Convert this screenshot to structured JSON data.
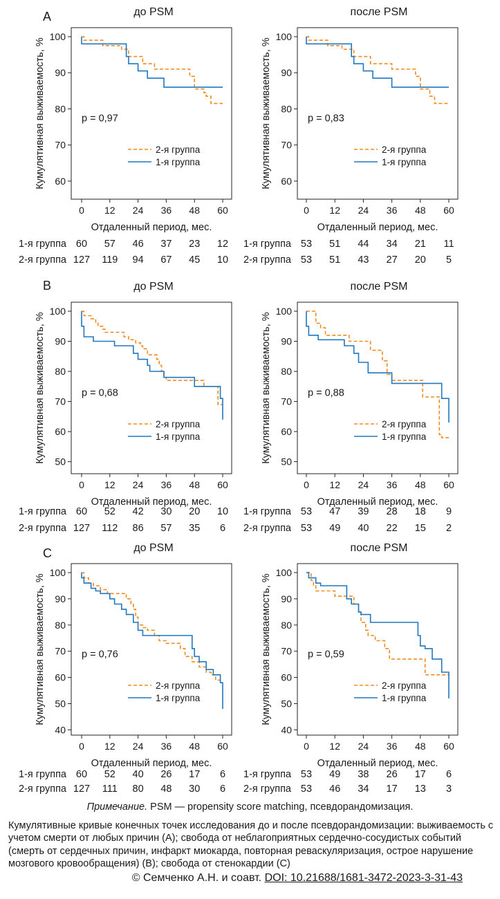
{
  "chart_data": [
    {
      "type": "line",
      "panel": "A",
      "title": "до PSM",
      "ylabel": "Кумулятивная выживаемость, %",
      "xlabel": "Отдаленный период, мес.",
      "xlim": [
        0,
        60
      ],
      "ylim": [
        55,
        101
      ],
      "xticks": [
        "0",
        "12",
        "24",
        "36",
        "48",
        "60"
      ],
      "yticks": [
        "100",
        "90",
        "80",
        "70",
        "60"
      ],
      "p_value": "p = 0,97",
      "legend": [
        "2-я группа",
        "1-я группа"
      ],
      "series": [
        {
          "name": "2-я группа",
          "style": "dashed",
          "x": [
            0,
            1,
            1,
            9,
            9,
            17,
            17,
            20,
            20,
            26,
            26,
            31,
            31,
            46,
            46,
            48,
            48,
            52,
            52,
            53,
            53,
            55,
            55,
            60
          ],
          "y": [
            100,
            100,
            99,
            99,
            97.5,
            97.5,
            96.5,
            96.5,
            94.5,
            94.5,
            92.5,
            92.5,
            91,
            91,
            89,
            89,
            85.5,
            85.5,
            84.5,
            84.5,
            83.5,
            83.5,
            81.5,
            81.5
          ]
        },
        {
          "name": "1-я группа",
          "style": "solid",
          "x": [
            0,
            0,
            19,
            19,
            20,
            20,
            24,
            24,
            28,
            28,
            35,
            35,
            60
          ],
          "y": [
            100,
            98,
            98,
            94.5,
            94.5,
            92.5,
            92.5,
            90.5,
            90.5,
            88.5,
            88.5,
            86,
            86
          ]
        }
      ],
      "at_risk": [
        {
          "label": "1-я группа",
          "values": [
            "60",
            "57",
            "46",
            "37",
            "23",
            "12"
          ]
        },
        {
          "label": "2-я группа",
          "values": [
            "127",
            "119",
            "94",
            "67",
            "45",
            "10"
          ]
        }
      ]
    },
    {
      "type": "line",
      "panel": "A",
      "title": "после PSM",
      "ylabel": "Кумулятивная выживаемость, %",
      "xlabel": "Отдаленный период, мес.",
      "xlim": [
        0,
        60
      ],
      "ylim": [
        55,
        101
      ],
      "xticks": [
        "0",
        "12",
        "24",
        "36",
        "48",
        "60"
      ],
      "yticks": [
        "100",
        "90",
        "80",
        "70",
        "60"
      ],
      "p_value": "p = 0,83",
      "legend": [
        "2-я группа",
        "1-я группа"
      ],
      "series": [
        {
          "name": "2-я группа",
          "style": "dashed",
          "x": [
            0,
            1,
            1,
            9,
            9,
            15,
            15,
            20,
            20,
            27,
            27,
            36,
            36,
            46,
            46,
            48,
            48,
            52,
            52,
            54,
            54,
            60
          ],
          "y": [
            100,
            100,
            99,
            99,
            97.5,
            97.5,
            96.5,
            96.5,
            94.5,
            94.5,
            92.5,
            92.5,
            91,
            91,
            89,
            89,
            85.5,
            85.5,
            83.5,
            83.5,
            81.5,
            81.5
          ]
        },
        {
          "name": "1-я группа",
          "style": "solid",
          "x": [
            0,
            0,
            19,
            19,
            20,
            20,
            24,
            24,
            28,
            28,
            36,
            36,
            60
          ],
          "y": [
            100,
            98,
            98,
            94.5,
            94.5,
            92.5,
            92.5,
            90.5,
            90.5,
            88.5,
            88.5,
            86,
            86
          ]
        }
      ],
      "at_risk": [
        {
          "label": "1-я группа",
          "values": [
            "53",
            "51",
            "44",
            "34",
            "21",
            "11"
          ]
        },
        {
          "label": "2-я группа",
          "values": [
            "53",
            "51",
            "43",
            "27",
            "20",
            "5"
          ]
        }
      ]
    },
    {
      "type": "line",
      "panel": "B",
      "title": "до PSM",
      "ylabel": "Кумулятивная выживаемость, %",
      "xlabel": "Отдаленный период, мес.",
      "xlim": [
        0,
        60
      ],
      "ylim": [
        46,
        101
      ],
      "xticks": [
        "0",
        "12",
        "24",
        "36",
        "48",
        "60"
      ],
      "yticks": [
        "100",
        "90",
        "80",
        "70",
        "60",
        "50"
      ],
      "p_value": "p = 0,68",
      "legend": [
        "2-я группа",
        "1-я группа"
      ],
      "series": [
        {
          "name": "2-я группа",
          "style": "dashed",
          "x": [
            0,
            1,
            1,
            4,
            4,
            6,
            6,
            7,
            7,
            9,
            9,
            10,
            10,
            18,
            18,
            20,
            20,
            23,
            23,
            25,
            25,
            26,
            26,
            28,
            28,
            32,
            32,
            33,
            33,
            34,
            34,
            35,
            35,
            36,
            36,
            52,
            52,
            58,
            58,
            60
          ],
          "y": [
            100,
            100,
            98.5,
            98.5,
            97.5,
            97.5,
            96,
            96,
            95,
            95,
            94,
            94,
            93,
            93,
            91.5,
            91.5,
            90.5,
            90.5,
            89.5,
            89.5,
            88.5,
            88.5,
            87.5,
            87.5,
            85.5,
            85.5,
            84,
            84,
            82,
            82,
            80,
            80,
            78,
            78,
            77,
            77,
            75,
            75,
            69,
            69
          ]
        },
        {
          "name": "1-я группа",
          "style": "solid",
          "x": [
            0,
            0,
            1,
            1,
            5,
            5,
            14,
            14,
            22,
            22,
            24,
            24,
            28,
            28,
            29,
            29,
            35,
            35,
            48,
            48,
            59,
            59,
            60,
            60
          ],
          "y": [
            100,
            95,
            95,
            91.5,
            91.5,
            90,
            90,
            88.5,
            88.5,
            86,
            86,
            84,
            84,
            82,
            82,
            80,
            80,
            78,
            78,
            75,
            75,
            71,
            71,
            64
          ]
        }
      ],
      "at_risk": [
        {
          "label": "1-я группа",
          "values": [
            "60",
            "52",
            "42",
            "30",
            "20",
            "10"
          ]
        },
        {
          "label": "2-я группа",
          "values": [
            "127",
            "112",
            "86",
            "57",
            "35",
            "6"
          ]
        }
      ]
    },
    {
      "type": "line",
      "panel": "B",
      "title": "после PSM",
      "ylabel": "Кумулятивная выживаемость, %",
      "xlabel": "Отдаленный период, мес.",
      "xlim": [
        0,
        60
      ],
      "ylim": [
        46,
        101
      ],
      "xticks": [
        "0",
        "12",
        "24",
        "36",
        "48",
        "60"
      ],
      "yticks": [
        "100",
        "90",
        "80",
        "70",
        "60",
        "50"
      ],
      "p_value": "p = 0,88",
      "legend": [
        "2-я группа",
        "1-я группа"
      ],
      "series": [
        {
          "name": "2-я группа",
          "style": "dashed",
          "x": [
            0,
            4,
            4,
            6,
            6,
            8,
            8,
            18,
            18,
            27,
            27,
            32,
            32,
            34,
            34,
            36,
            36,
            49,
            49,
            56,
            56,
            57,
            57,
            60
          ],
          "y": [
            100,
            100,
            96,
            96,
            94.5,
            94.5,
            92,
            92,
            90,
            90,
            87,
            87,
            83.5,
            83.5,
            79,
            79,
            77,
            77,
            71.5,
            71.5,
            59,
            59,
            58,
            58
          ]
        },
        {
          "name": "1-я группа",
          "style": "solid",
          "x": [
            0,
            0,
            1,
            1,
            5,
            5,
            16,
            16,
            20,
            20,
            22,
            22,
            26,
            26,
            36,
            36,
            57,
            57,
            60,
            60
          ],
          "y": [
            100,
            95,
            95,
            92,
            92,
            90.5,
            90.5,
            88.5,
            88.5,
            86,
            86,
            83,
            83,
            79.5,
            79.5,
            76,
            76,
            71,
            71,
            63
          ]
        }
      ],
      "at_risk": [
        {
          "label": "1-я группа",
          "values": [
            "53",
            "47",
            "39",
            "28",
            "18",
            "9"
          ]
        },
        {
          "label": "2-я группа",
          "values": [
            "53",
            "49",
            "40",
            "22",
            "15",
            "2"
          ]
        }
      ]
    },
    {
      "type": "line",
      "panel": "C",
      "title": "до PSM",
      "ylabel": "Кумулятивная выживаемость, %",
      "xlabel": "Отдаленный период, мес.",
      "xlim": [
        0,
        60
      ],
      "ylim": [
        38,
        101
      ],
      "xticks": [
        "0",
        "12",
        "24",
        "36",
        "48",
        "60"
      ],
      "yticks": [
        "100",
        "90",
        "80",
        "70",
        "60",
        "50",
        "40"
      ],
      "p_value": "p = 0,76",
      "legend": [
        "2-я группа",
        "1-я группа"
      ],
      "series": [
        {
          "name": "2-я группа",
          "style": "dashed",
          "x": [
            0,
            1,
            1,
            3,
            3,
            5,
            5,
            8,
            8,
            11,
            11,
            19,
            19,
            21,
            21,
            22,
            22,
            23,
            23,
            24,
            24,
            26,
            26,
            28,
            28,
            31,
            31,
            33,
            33,
            36,
            36,
            42,
            42,
            44,
            44,
            47,
            47,
            50,
            50,
            53,
            53,
            55,
            55,
            57,
            57,
            59,
            59,
            60
          ],
          "y": [
            100,
            100,
            98,
            98,
            96,
            96,
            95,
            95,
            93.5,
            93.5,
            92,
            92,
            90,
            90,
            88,
            88,
            86,
            86,
            83,
            83,
            80,
            80,
            79,
            79,
            78,
            78,
            76,
            76,
            74,
            74,
            73,
            73,
            71,
            71,
            68,
            68,
            66,
            66,
            64,
            64,
            62,
            62,
            61,
            61,
            59,
            59,
            58,
            58
          ]
        },
        {
          "name": "1-я группа",
          "style": "solid",
          "x": [
            0,
            0,
            1,
            1,
            4,
            4,
            6,
            6,
            8,
            8,
            12,
            12,
            14,
            14,
            17,
            17,
            19,
            19,
            22,
            22,
            24,
            24,
            26,
            26,
            47,
            47,
            48,
            48,
            50,
            50,
            53,
            53,
            56,
            56,
            59,
            59,
            60,
            60
          ],
          "y": [
            100,
            98,
            98,
            96,
            96,
            94,
            94,
            93,
            93,
            92,
            92,
            90,
            90,
            88,
            88,
            86,
            86,
            84,
            84,
            81,
            81,
            78,
            78,
            76,
            76,
            71,
            71,
            68,
            68,
            66,
            66,
            63,
            63,
            61,
            61,
            58,
            58,
            48
          ]
        }
      ],
      "at_risk": [
        {
          "label": "1-я группа",
          "values": [
            "60",
            "52",
            "40",
            "26",
            "17",
            "6"
          ]
        },
        {
          "label": "2-я группа",
          "values": [
            "127",
            "111",
            "80",
            "48",
            "30",
            "6"
          ]
        }
      ]
    },
    {
      "type": "line",
      "panel": "C",
      "title": "после PSM",
      "ylabel": "Кумулятивная выживаемость, %",
      "xlabel": "Отдаленный период, мес.",
      "xlim": [
        0,
        60
      ],
      "ylim": [
        38,
        101
      ],
      "xticks": [
        "0",
        "12",
        "24",
        "36",
        "48",
        "60"
      ],
      "yticks": [
        "100",
        "90",
        "80",
        "70",
        "60",
        "50",
        "40"
      ],
      "p_value": "p = 0,59",
      "legend": [
        "2-я группа",
        "1-я группа"
      ],
      "series": [
        {
          "name": "2-я группа",
          "style": "dashed",
          "x": [
            0,
            2,
            2,
            3,
            3,
            4,
            4,
            12,
            12,
            20,
            20,
            22,
            22,
            23,
            23,
            25,
            25,
            26,
            26,
            29,
            29,
            33,
            33,
            35,
            35,
            50,
            50,
            60
          ],
          "y": [
            100,
            100,
            97,
            97,
            95,
            95,
            93,
            93,
            91,
            91,
            88,
            88,
            85,
            85,
            81,
            81,
            78,
            78,
            76,
            76,
            74,
            74,
            71,
            71,
            67,
            67,
            61,
            61
          ]
        },
        {
          "name": "1-я группа",
          "style": "solid",
          "x": [
            0,
            1,
            1,
            4,
            4,
            6,
            6,
            17,
            17,
            19,
            19,
            22,
            22,
            23,
            23,
            27,
            27,
            47,
            47,
            48,
            48,
            50,
            50,
            53,
            53,
            57,
            57,
            60,
            60
          ],
          "y": [
            100,
            100,
            98,
            98,
            96,
            96,
            95,
            95,
            90,
            90,
            88,
            88,
            85,
            85,
            84,
            84,
            81,
            81,
            76,
            76,
            72,
            72,
            71,
            71,
            67,
            67,
            62,
            62,
            52
          ]
        }
      ],
      "at_risk": [
        {
          "label": "1-я группа",
          "values": [
            "53",
            "49",
            "38",
            "26",
            "17",
            "6"
          ]
        },
        {
          "label": "2-я группа",
          "values": [
            "53",
            "46",
            "34",
            "17",
            "13",
            "3"
          ]
        }
      ]
    }
  ],
  "panel_letters": [
    "A",
    "B",
    "C"
  ],
  "colors": {
    "group1": "#1f78c1",
    "group2": "#f28a1e",
    "axis": "#222222"
  },
  "note": {
    "label": "Примечание.",
    "text": " PSM — propensity score matching, псевдорандомизация."
  },
  "caption": "Кумулятивные кривые конечных точек исследования до и после псевдорандомизации: выживаемость с учетом смерти от любых причин (A); свобода от неблагоприятных сердечно-сосудистых событий (смерть от сердечных причин, инфаркт миокарда, повторная реваскуляризация, острое нарушение мозгового кровообращения) (B); свобода от стенокардии (C)",
  "copyright": {
    "text": "© Семченко А.Н. и соавт. ",
    "doi": "DOI: 10.21688/1681-3472-2023-3-31-43"
  }
}
